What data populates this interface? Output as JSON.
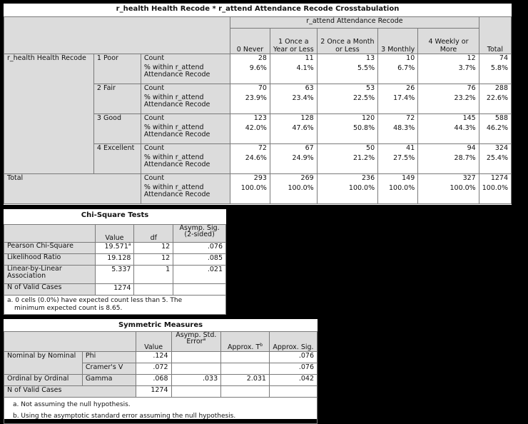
{
  "crosstab": {
    "title": "r_health Health Recode * r_attend Attendance Recode Crosstabulation",
    "col_group_label": "r_attend Attendance Recode",
    "columns": [
      "0 Never",
      "1 Once a Year or Less",
      "2 Once a Month or Less",
      "3 Monthly",
      "4 Weekly or More"
    ],
    "total_label": "Total",
    "row_var_label": "r_health Health Recode",
    "count_label": "Count",
    "pct_label": "% within r_attend Attendance Recode",
    "rows": [
      {
        "label": "1 Poor",
        "counts": [
          "28",
          "11",
          "13",
          "10",
          "12",
          "74"
        ],
        "pcts": [
          "9.6%",
          "4.1%",
          "5.5%",
          "6.7%",
          "3.7%",
          "5.8%"
        ]
      },
      {
        "label": "2 Fair",
        "counts": [
          "70",
          "63",
          "53",
          "26",
          "76",
          "288"
        ],
        "pcts": [
          "23.9%",
          "23.4%",
          "22.5%",
          "17.4%",
          "23.2%",
          "22.6%"
        ]
      },
      {
        "label": "3 Good",
        "counts": [
          "123",
          "128",
          "120",
          "72",
          "145",
          "588"
        ],
        "pcts": [
          "42.0%",
          "47.6%",
          "50.8%",
          "48.3%",
          "44.3%",
          "46.2%"
        ]
      },
      {
        "label": "4 Excellent",
        "counts": [
          "72",
          "67",
          "50",
          "41",
          "94",
          "324"
        ],
        "pcts": [
          "24.6%",
          "24.9%",
          "21.2%",
          "27.5%",
          "28.7%",
          "25.4%"
        ]
      }
    ],
    "total_row": {
      "label": "Total",
      "counts": [
        "293",
        "269",
        "236",
        "149",
        "327",
        "1274"
      ],
      "pcts": [
        "100.0%",
        "100.0%",
        "100.0%",
        "100.0%",
        "100.0%",
        "100.0%"
      ]
    }
  },
  "chisq": {
    "title": "Chi-Square Tests",
    "headers": [
      "Value",
      "df",
      "Asymp. Sig. (2-sided)"
    ],
    "rows": [
      {
        "label": "Pearson Chi-Square",
        "value": "19.571",
        "sup": "a",
        "df": "12",
        "sig": ".076"
      },
      {
        "label": "Likelihood Ratio",
        "value": "19.128",
        "sup": "",
        "df": "12",
        "sig": ".085"
      },
      {
        "label": "Linear-by-Linear Association",
        "value": "5.337",
        "sup": "",
        "df": "1",
        "sig": ".021"
      },
      {
        "label": "N of Valid Cases",
        "value": "1274",
        "sup": "",
        "df": "",
        "sig": ""
      }
    ],
    "footnote": "a. 0 cells (0.0%) have expected count less than 5. The minimum expected count is 8.65."
  },
  "symm": {
    "title": "Symmetric Measures",
    "headers": {
      "value": "Value",
      "ase": "Asymp. Std. Error",
      "ase_sup": "a",
      "t": "Approx. T",
      "t_sup": "b",
      "sig": "Approx. Sig."
    },
    "rows": [
      {
        "group": "Nominal by Nominal",
        "label": "Phi",
        "value": ".124",
        "ase": "",
        "t": "",
        "sig": ".076"
      },
      {
        "group": "",
        "label": "Cramer's V",
        "value": ".072",
        "ase": "",
        "t": "",
        "sig": ".076"
      },
      {
        "group": "Ordinal by Ordinal",
        "label": "Gamma",
        "value": ".068",
        "ase": ".033",
        "t": "2.031",
        "sig": ".042"
      },
      {
        "group": "N of Valid Cases",
        "label": "",
        "value": "1274",
        "ase": "",
        "t": "",
        "sig": ""
      }
    ],
    "footnotes": [
      "a. Not assuming the null hypothesis.",
      "b. Using the asymptotic standard error assuming the null hypothesis."
    ]
  }
}
